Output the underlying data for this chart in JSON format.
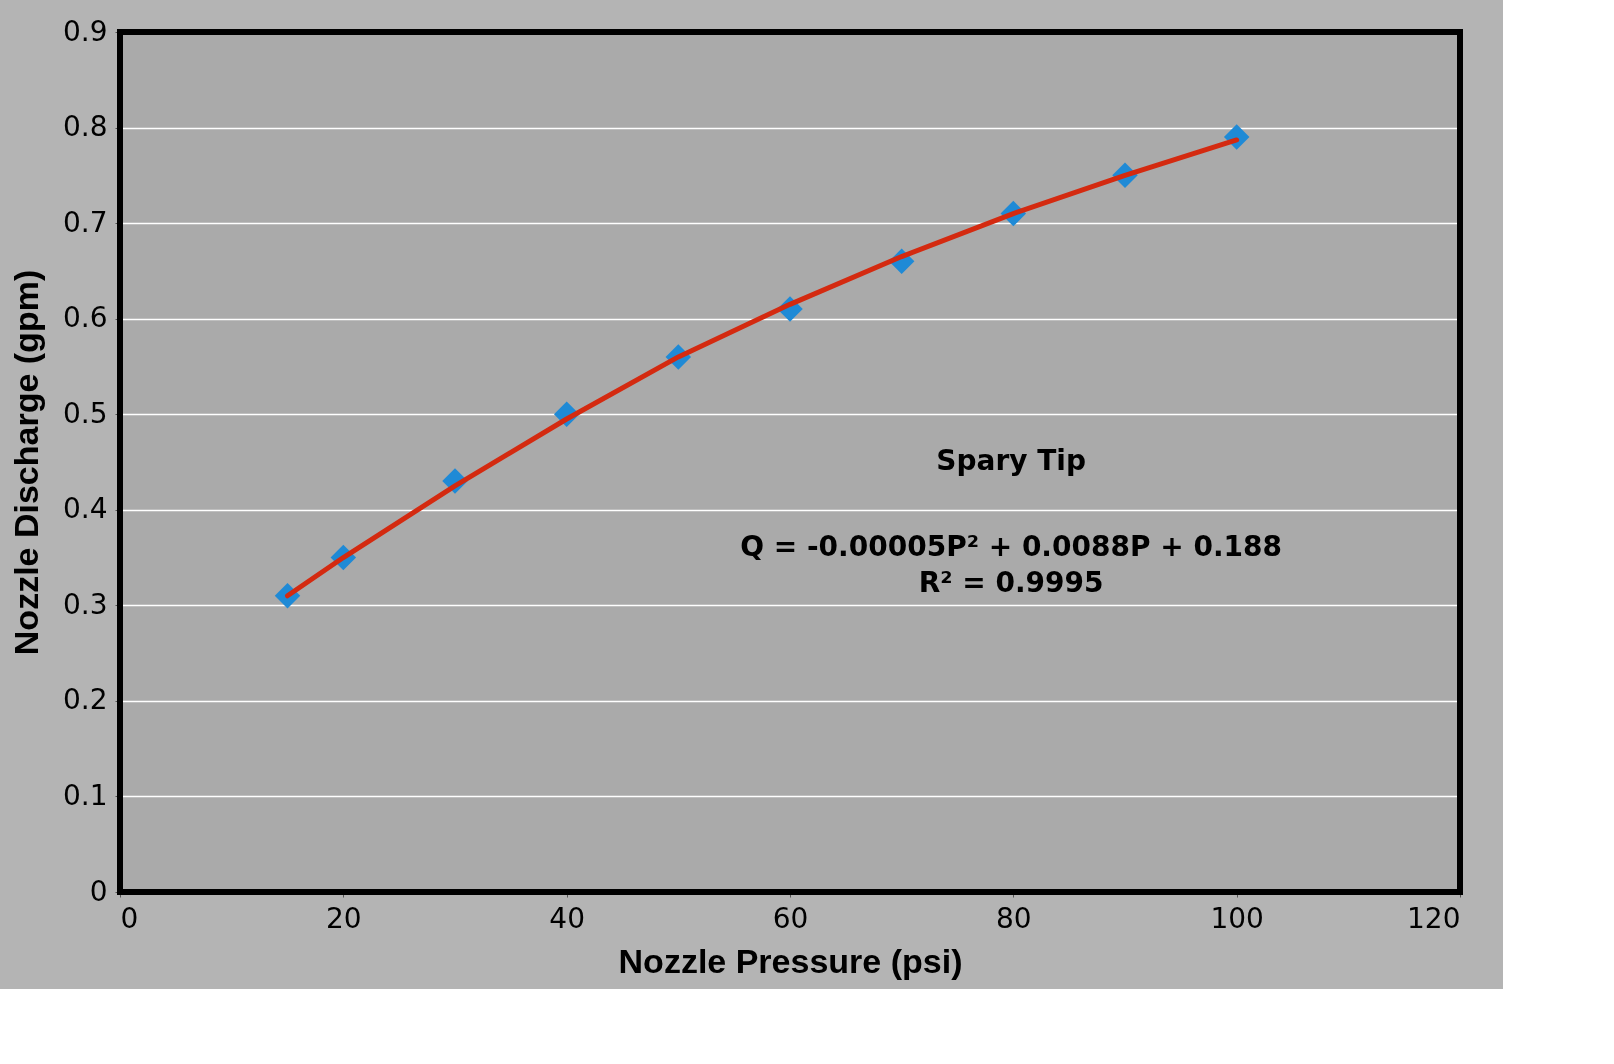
{
  "chart_data": {
    "type": "scatter",
    "xlabel": "Nozzle Pressure (psi)",
    "ylabel": "Nozzle Discharge (gpm)",
    "x": [
      15,
      20,
      30,
      40,
      50,
      60,
      70,
      80,
      90,
      100
    ],
    "series": [
      {
        "color": "#1f8ad6",
        "marker": "diamond",
        "values": [
          0.31,
          0.35,
          0.43,
          0.5,
          0.56,
          0.61,
          0.66,
          0.71,
          0.75,
          0.79
        ]
      },
      {
        "type": "line",
        "color": "#d42a10",
        "line_style": "solid",
        "x": [
          15,
          20,
          30,
          40,
          50,
          60,
          70,
          80,
          90,
          100
        ],
        "values": [
          0.31,
          0.35,
          0.425,
          0.495,
          0.56,
          0.615,
          0.665,
          0.71,
          0.75,
          0.787
        ]
      }
    ],
    "xlim": [
      0,
      120
    ],
    "xticks": [
      0,
      20,
      40,
      60,
      80,
      100,
      120
    ],
    "ylim": [
      0,
      0.9
    ],
    "yticks": [
      0,
      0.1,
      0.2,
      0.3,
      0.4,
      0.5,
      0.6,
      0.7,
      0.8,
      0.9
    ],
    "grid": "y",
    "annotations": [
      "Spary Tip",
      "Q = -0.00005P² + 0.0088P + 0.188",
      "R² = 0.9995"
    ]
  }
}
